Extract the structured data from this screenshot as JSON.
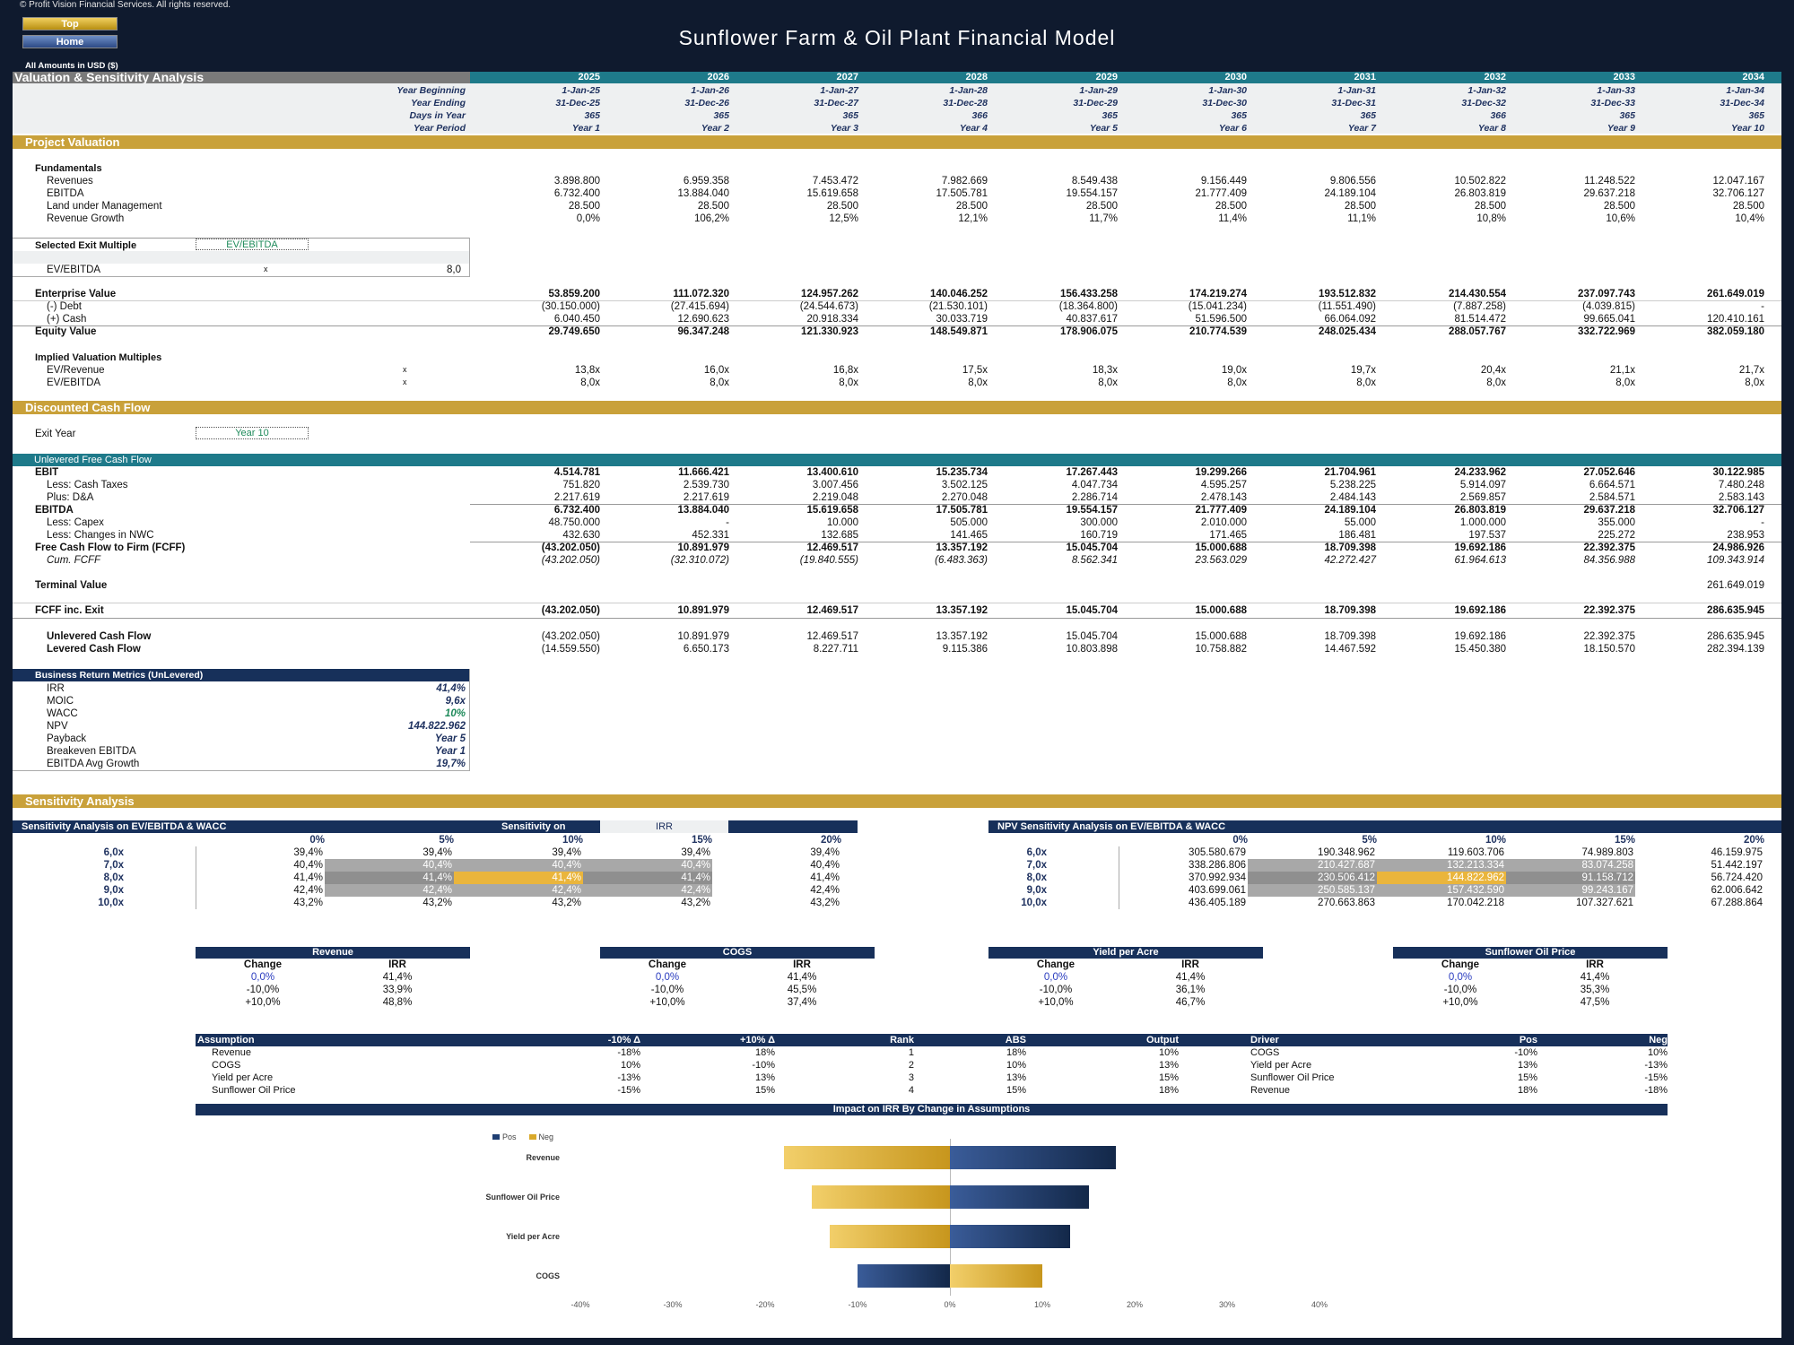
{
  "header": {
    "copyright": "© Profit Vision Financial Services. All rights reserved.",
    "top_button": "Top",
    "home_button": "Home",
    "title": "Sunflower Farm & Oil Plant Financial Model",
    "amounts": "All Amounts in  USD ($)"
  },
  "sheet": {
    "section_title": "Valuation & Sensitivity Analysis",
    "years": [
      "2025",
      "2026",
      "2027",
      "2028",
      "2029",
      "2030",
      "2031",
      "2032",
      "2033",
      "2034"
    ],
    "timeline": [
      {
        "label": "Year Beginning",
        "values": [
          "1-Jan-25",
          "1-Jan-26",
          "1-Jan-27",
          "1-Jan-28",
          "1-Jan-29",
          "1-Jan-30",
          "1-Jan-31",
          "1-Jan-32",
          "1-Jan-33",
          "1-Jan-34"
        ]
      },
      {
        "label": "Year Ending",
        "values": [
          "31-Dec-25",
          "31-Dec-26",
          "31-Dec-27",
          "31-Dec-28",
          "31-Dec-29",
          "31-Dec-30",
          "31-Dec-31",
          "31-Dec-32",
          "31-Dec-33",
          "31-Dec-34"
        ]
      },
      {
        "label": "Days in Year",
        "values": [
          "365",
          "365",
          "365",
          "366",
          "365",
          "365",
          "365",
          "366",
          "365",
          "365"
        ]
      },
      {
        "label": "Year Period",
        "values": [
          "Year 1",
          "Year 2",
          "Year 3",
          "Year 4",
          "Year 5",
          "Year 6",
          "Year 7",
          "Year 8",
          "Year 9",
          "Year 10"
        ]
      }
    ],
    "project_valuation": "Project Valuation",
    "fundamentals": "Fundamentals",
    "fund_rows": [
      {
        "label": "Revenues",
        "values": [
          "3.898.800",
          "6.959.358",
          "7.453.472",
          "7.982.669",
          "8.549.438",
          "9.156.449",
          "9.806.556",
          "10.502.822",
          "11.248.522",
          "12.047.167"
        ]
      },
      {
        "label": "EBITDA",
        "values": [
          "6.732.400",
          "13.884.040",
          "15.619.658",
          "17.505.781",
          "19.554.157",
          "21.777.409",
          "24.189.104",
          "26.803.819",
          "29.637.218",
          "32.706.127"
        ]
      },
      {
        "label": "Land under Management",
        "values": [
          "28.500",
          "28.500",
          "28.500",
          "28.500",
          "28.500",
          "28.500",
          "28.500",
          "28.500",
          "28.500",
          "28.500"
        ]
      },
      {
        "label": "Revenue Growth",
        "values": [
          "0,0%",
          "106,2%",
          "12,5%",
          "12,1%",
          "11,7%",
          "11,4%",
          "11,1%",
          "10,8%",
          "10,6%",
          "10,4%"
        ]
      }
    ],
    "selected_exit_label": "Selected Exit Multiple",
    "selected_exit_value": "EV/EBITDA",
    "ev_ebitda_label": "EV/EBITDA",
    "ev_ebitda_unit": "x",
    "ev_ebitda_value": "8,0",
    "ev_rows": [
      {
        "label": "Enterprise Value",
        "bold": true,
        "values": [
          "53.859.200",
          "111.072.320",
          "124.957.262",
          "140.046.252",
          "156.433.258",
          "174.219.274",
          "193.512.832",
          "214.430.554",
          "237.097.743",
          "261.649.019"
        ]
      },
      {
        "label": "(-) Debt",
        "bold": false,
        "values": [
          "(30.150.000)",
          "(27.415.694)",
          "(24.544.673)",
          "(21.530.101)",
          "(18.364.800)",
          "(15.041.234)",
          "(11.551.490)",
          "(7.887.258)",
          "(4.039.815)",
          "-"
        ]
      },
      {
        "label": "(+) Cash",
        "bold": false,
        "values": [
          "6.040.450",
          "12.690.623",
          "20.918.334",
          "30.033.719",
          "40.837.617",
          "51.596.500",
          "66.064.092",
          "81.514.472",
          "99.665.041",
          "120.410.161"
        ]
      },
      {
        "label": "Equity Value",
        "bold": true,
        "values": [
          "29.749.650",
          "96.347.248",
          "121.330.923",
          "148.549.871",
          "178.906.075",
          "210.774.539",
          "248.025.434",
          "288.057.767",
          "332.722.969",
          "382.059.180"
        ]
      }
    ],
    "implied_label": "Implied Valuation Multiples",
    "implied_rows": [
      {
        "label": "EV/Revenue",
        "unit": "x",
        "values": [
          "13,8x",
          "16,0x",
          "16,8x",
          "17,5x",
          "18,3x",
          "19,0x",
          "19,7x",
          "20,4x",
          "21,1x",
          "21,7x"
        ]
      },
      {
        "label": "EV/EBITDA",
        "unit": "x",
        "values": [
          "8,0x",
          "8,0x",
          "8,0x",
          "8,0x",
          "8,0x",
          "8,0x",
          "8,0x",
          "8,0x",
          "8,0x",
          "8,0x"
        ]
      }
    ],
    "dcf_title": "Discounted Cash Flow",
    "exit_year_label": "Exit Year",
    "exit_year_value": "Year 10",
    "ufcf_title": "Unlevered Free Cash Flow",
    "ufcf_rows": [
      {
        "label": "EBIT",
        "style": "b",
        "values": [
          "4.514.781",
          "11.666.421",
          "13.400.610",
          "15.235.734",
          "17.267.443",
          "19.299.266",
          "21.704.961",
          "24.233.962",
          "27.052.646",
          "30.122.985"
        ]
      },
      {
        "label": "Less: Cash Taxes",
        "style": "s",
        "values": [
          "751.820",
          "2.539.730",
          "3.007.456",
          "3.502.125",
          "4.047.734",
          "4.595.257",
          "5.238.225",
          "5.914.097",
          "6.664.571",
          "7.480.248"
        ]
      },
      {
        "label": "Plus: D&A",
        "style": "s",
        "values": [
          "2.217.619",
          "2.217.619",
          "2.219.048",
          "2.270.048",
          "2.286.714",
          "2.478.143",
          "2.484.143",
          "2.569.857",
          "2.584.571",
          "2.583.143"
        ]
      },
      {
        "label": "EBITDA",
        "style": "b",
        "values": [
          "6.732.400",
          "13.884.040",
          "15.619.658",
          "17.505.781",
          "19.554.157",
          "21.777.409",
          "24.189.104",
          "26.803.819",
          "29.637.218",
          "32.706.127"
        ]
      },
      {
        "label": "Less: Capex",
        "style": "s",
        "values": [
          "48.750.000",
          "-",
          "10.000",
          "505.000",
          "300.000",
          "2.010.000",
          "55.000",
          "1.000.000",
          "355.000",
          "-"
        ]
      },
      {
        "label": "Less: Changes in NWC",
        "style": "s",
        "values": [
          "432.630",
          "452.331",
          "132.685",
          "141.465",
          "160.719",
          "171.465",
          "186.481",
          "197.537",
          "225.272",
          "238.953"
        ]
      },
      {
        "label": "Free Cash Flow to Firm (FCFF)",
        "style": "b",
        "values": [
          "(43.202.050)",
          "10.891.979",
          "12.469.517",
          "13.357.192",
          "15.045.704",
          "15.000.688",
          "18.709.398",
          "19.692.186",
          "22.392.375",
          "24.986.926"
        ]
      },
      {
        "label": "Cum. FCFF",
        "style": "i",
        "values": [
          "(43.202.050)",
          "(32.310.072)",
          "(19.840.555)",
          "(6.483.363)",
          "8.562.341",
          "23.563.029",
          "42.272.427",
          "61.964.613",
          "84.356.988",
          "109.343.914"
        ]
      }
    ],
    "terminal_label": "Terminal Value",
    "terminal_value": "261.649.019",
    "fcff_exit_label": "FCFF inc. Exit",
    "fcff_exit_values": [
      "(43.202.050)",
      "10.891.979",
      "12.469.517",
      "13.357.192",
      "15.045.704",
      "15.000.688",
      "18.709.398",
      "19.692.186",
      "22.392.375",
      "286.635.945"
    ],
    "cf_rows": [
      {
        "label": "Unlevered Cash Flow",
        "values": [
          "(43.202.050)",
          "10.891.979",
          "12.469.517",
          "13.357.192",
          "15.045.704",
          "15.000.688",
          "18.709.398",
          "19.692.186",
          "22.392.375",
          "286.635.945"
        ]
      },
      {
        "label": "Levered Cash Flow",
        "values": [
          "(14.559.550)",
          "6.650.173",
          "8.227.711",
          "9.115.386",
          "10.803.898",
          "10.758.882",
          "14.467.592",
          "15.450.380",
          "18.150.570",
          "282.394.139"
        ]
      }
    ],
    "metrics_title": "Business Return Metrics (UnLevered)",
    "metrics": [
      {
        "label": "IRR",
        "value": "41,4%"
      },
      {
        "label": "MOIC",
        "value": "9,6x"
      },
      {
        "label": "WACC",
        "value": "10%"
      },
      {
        "label": "NPV",
        "value": "144.822.962"
      },
      {
        "label": "Payback",
        "value": "Year 5"
      },
      {
        "label": "Breakeven EBITDA",
        "value": "Year 1"
      },
      {
        "label": "EBITDA Avg Growth",
        "value": "19,7%"
      }
    ],
    "sensitivity_title": "Sensitivity Analysis",
    "sens1": {
      "title": "Sensitivity Analysis on EV/EBITDA & WACC",
      "on_label": "Sensitivity on",
      "on_value": "IRR",
      "cols": [
        "0%",
        "5%",
        "10%",
        "15%",
        "20%"
      ],
      "rows": [
        "6,0x",
        "7,0x",
        "8,0x",
        "9,0x",
        "10,0x"
      ],
      "values": [
        [
          "39,4%",
          "39,4%",
          "39,4%",
          "39,4%",
          "39,4%"
        ],
        [
          "40,4%",
          "40,4%",
          "40,4%",
          "40,4%",
          "40,4%"
        ],
        [
          "41,4%",
          "41,4%",
          "41,4%",
          "41,4%",
          "41,4%"
        ],
        [
          "42,4%",
          "42,4%",
          "42,4%",
          "42,4%",
          "42,4%"
        ],
        [
          "43,2%",
          "43,2%",
          "43,2%",
          "43,2%",
          "43,2%"
        ]
      ]
    },
    "sens2": {
      "title": "NPV Sensitivity Analysis on EV/EBITDA & WACC",
      "cols": [
        "0%",
        "5%",
        "10%",
        "15%",
        "20%"
      ],
      "rows": [
        "6,0x",
        "7,0x",
        "8,0x",
        "9,0x",
        "10,0x"
      ],
      "values": [
        [
          "305.580.679",
          "190.348.962",
          "119.603.706",
          "74.989.803",
          "46.159.975"
        ],
        [
          "338.286.806",
          "210.427.687",
          "132.213.334",
          "83.074.258",
          "51.442.197"
        ],
        [
          "370.992.934",
          "230.506.412",
          "144.822.962",
          "91.158.712",
          "56.724.420"
        ],
        [
          "403.699.061",
          "250.585.137",
          "157.432.590",
          "99.243.167",
          "62.006.642"
        ],
        [
          "436.405.189",
          "270.663.863",
          "170.042.218",
          "107.327.621",
          "67.288.864"
        ]
      ]
    },
    "small_tables": [
      {
        "title": "Revenue",
        "h1": "Change",
        "h2": "IRR",
        "rows": [
          [
            "0,0%",
            "41,4%"
          ],
          [
            "-10,0%",
            "33,9%"
          ],
          [
            "+10,0%",
            "48,8%"
          ]
        ]
      },
      {
        "title": "COGS",
        "h1": "Change",
        "h2": "IRR",
        "rows": [
          [
            "0,0%",
            "41,4%"
          ],
          [
            "-10,0%",
            "45,5%"
          ],
          [
            "+10,0%",
            "37,4%"
          ]
        ]
      },
      {
        "title": "Yield per Acre",
        "h1": "Change",
        "h2": "IRR",
        "rows": [
          [
            "0,0%",
            "41,4%"
          ],
          [
            "-10,0%",
            "36,1%"
          ],
          [
            "+10,0%",
            "46,7%"
          ]
        ]
      },
      {
        "title": "Sunflower Oil Price",
        "h1": "Change",
        "h2": "IRR",
        "rows": [
          [
            "0,0%",
            "41,4%"
          ],
          [
            "-10,0%",
            "35,3%"
          ],
          [
            "+10,0%",
            "47,5%"
          ]
        ]
      }
    ],
    "assump": {
      "headers": [
        "Assumption",
        "-10% Δ",
        "+10% Δ",
        "Rank",
        "ABS",
        "Output",
        "Driver",
        "Pos",
        "Neg"
      ],
      "rows": [
        [
          "Revenue",
          "-18%",
          "18%",
          "1",
          "18%",
          "10%",
          "COGS",
          "-10%",
          "10%"
        ],
        [
          "COGS",
          "10%",
          "-10%",
          "2",
          "10%",
          "13%",
          "Yield per Acre",
          "13%",
          "-13%"
        ],
        [
          "Yield per Acre",
          "-13%",
          "13%",
          "3",
          "13%",
          "15%",
          "Sunflower Oil Price",
          "15%",
          "-15%"
        ],
        [
          "Sunflower Oil Price",
          "-15%",
          "15%",
          "4",
          "15%",
          "18%",
          "Revenue",
          "18%",
          "-18%"
        ]
      ]
    }
  },
  "chart_data": {
    "type": "bar",
    "orientation": "horizontal",
    "title": "Impact on IRR By Change in Assumptions",
    "categories": [
      "Revenue",
      "Sunflower Oil Price",
      "Yield per Acre",
      "COGS"
    ],
    "series": [
      {
        "name": "Pos",
        "color": "#1f3f73",
        "values": [
          18,
          15,
          13,
          -10
        ]
      },
      {
        "name": "Neg",
        "color": "#d9a92a",
        "values": [
          -18,
          -15,
          -13,
          10
        ]
      }
    ],
    "xlim": [
      -40,
      40
    ],
    "xticks": [
      "-40%",
      "-30%",
      "-20%",
      "-10%",
      "0%",
      "10%",
      "20%",
      "30%",
      "40%"
    ],
    "legend": "top-left"
  }
}
